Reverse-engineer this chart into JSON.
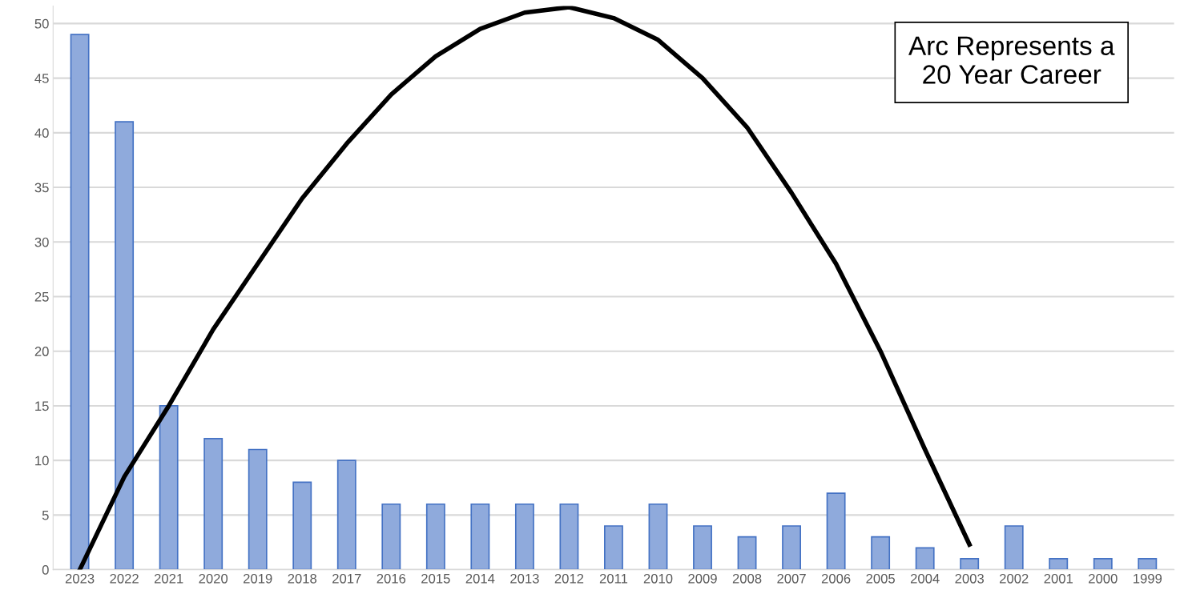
{
  "chart_data": {
    "type": "bar",
    "categories": [
      "2023",
      "2022",
      "2021",
      "2020",
      "2019",
      "2018",
      "2017",
      "2016",
      "2015",
      "2014",
      "2013",
      "2012",
      "2011",
      "2010",
      "2009",
      "2008",
      "2007",
      "2006",
      "2005",
      "2004",
      "2003",
      "2002",
      "2001",
      "2000",
      "1999"
    ],
    "series": [
      {
        "color": "#8faadc",
        "values": [
          49,
          41,
          15,
          12,
          11,
          8,
          10,
          6,
          6,
          6,
          6,
          6,
          4,
          6,
          4,
          3,
          4,
          7,
          3,
          2,
          1,
          4,
          1,
          1,
          1
        ]
      },
      {
        "type": "line",
        "color": "#000000",
        "values": [
          0,
          8.5,
          15,
          22,
          28,
          34,
          39,
          43.5,
          47,
          49.5,
          51,
          51.5,
          50.5,
          48.5,
          45,
          40.5,
          34.5,
          28,
          20,
          11,
          2.3,
          null,
          null,
          null,
          null
        ]
      }
    ],
    "ylim": [
      0,
      51.6
    ],
    "yticks": [
      0,
      5,
      10,
      15,
      20,
      25,
      30,
      35,
      40,
      45,
      50
    ],
    "grid": "y",
    "marker": "none",
    "annotations": [
      "Arc Represents a\n20 Year Career"
    ]
  }
}
